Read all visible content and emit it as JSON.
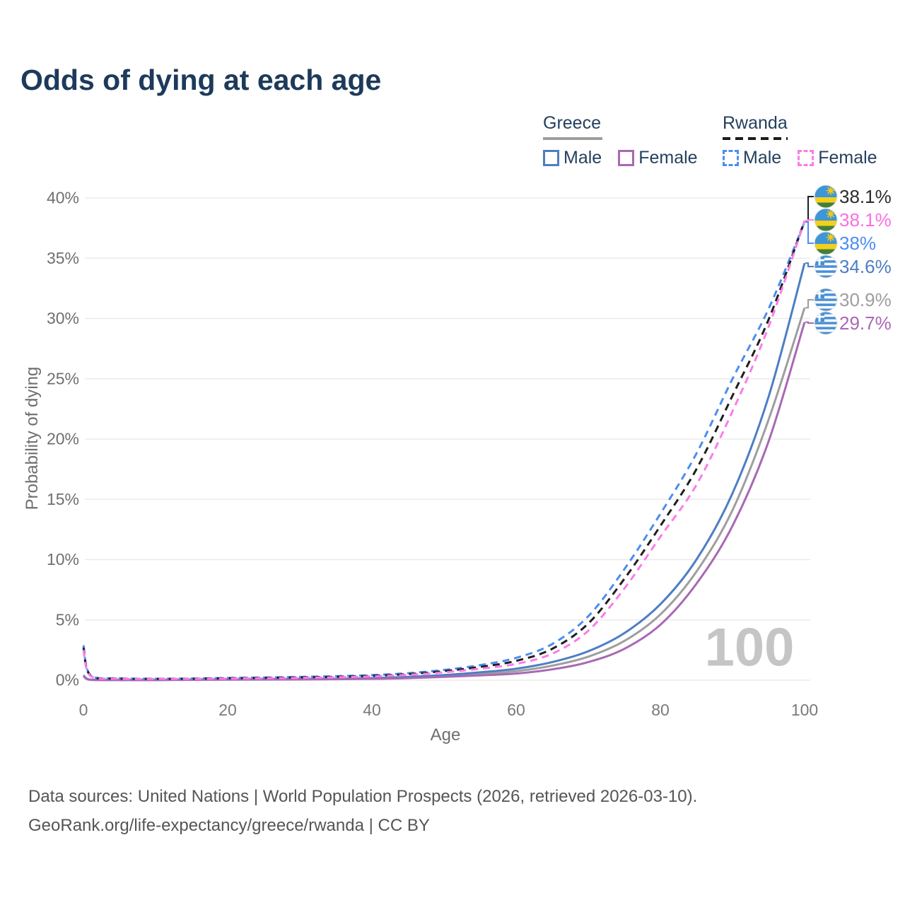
{
  "title": "Odds of dying at each age",
  "legend": {
    "groups": [
      {
        "country": "Greece",
        "line_style": "solid",
        "underline_color": "#9e9e9e",
        "items": [
          {
            "label": "Male",
            "color": "#4d7ec3"
          },
          {
            "label": "Female",
            "color": "#a968b4"
          }
        ]
      },
      {
        "country": "Rwanda",
        "line_style": "dashed",
        "underline_color": "#1c1c1c",
        "items": [
          {
            "label": "Male",
            "color": "#4b8df2"
          },
          {
            "label": "Female",
            "color": "#fa7ce8"
          }
        ]
      }
    ]
  },
  "colors": {
    "title_text": "#1d3a5b",
    "legend_text": "#25405f",
    "axis_text": "#6f6f6f",
    "gridline": "#ebebeb",
    "watermark": "#c5c5c5",
    "footer_text": "#555555"
  },
  "chart_data": {
    "type": "line",
    "title": "Odds of dying at each age",
    "xlabel": "Age",
    "ylabel": "Probability of dying",
    "xlim": [
      0,
      100
    ],
    "ylim": [
      0,
      40
    ],
    "xticks": [
      0,
      20,
      40,
      60,
      80,
      100
    ],
    "yticks": [
      0,
      5,
      10,
      15,
      20,
      25,
      30,
      35,
      40
    ],
    "ytick_suffix": "%",
    "grid": "horizontal",
    "legend_position": "top-right",
    "watermark": "100",
    "x": [
      0,
      1,
      5,
      10,
      15,
      20,
      25,
      30,
      35,
      40,
      45,
      50,
      55,
      60,
      65,
      70,
      75,
      80,
      85,
      90,
      95,
      100
    ],
    "series": [
      {
        "id": "greece-all",
        "name": "Greece All",
        "country": "Greece",
        "sex": "all",
        "color": "#9e9e9e",
        "dash": false,
        "flag": "greece",
        "end_label": "30.9%",
        "label_color": "#9e9e9e",
        "values": [
          0.37,
          0.035,
          0.018,
          0.018,
          0.04,
          0.055,
          0.065,
          0.08,
          0.1,
          0.14,
          0.22,
          0.35,
          0.52,
          0.75,
          1.2,
          1.95,
          3.25,
          5.45,
          9.0,
          14.1,
          21.6,
          30.9
        ]
      },
      {
        "id": "greece-male",
        "name": "Greece Male",
        "country": "Greece",
        "sex": "male",
        "color": "#4d7ec3",
        "dash": false,
        "flag": "greece",
        "end_label": "34.6%",
        "label_color": "#4d7ec3",
        "values": [
          0.4,
          0.04,
          0.02,
          0.02,
          0.05,
          0.07,
          0.08,
          0.1,
          0.12,
          0.17,
          0.27,
          0.42,
          0.65,
          0.95,
          1.5,
          2.4,
          3.9,
          6.3,
          10.0,
          15.5,
          23.5,
          34.6
        ]
      },
      {
        "id": "greece-female",
        "name": "Greece Female",
        "country": "Greece",
        "sex": "female",
        "color": "#a968b4",
        "dash": false,
        "flag": "greece",
        "end_label": "29.7%",
        "label_color": "#a968b4",
        "values": [
          0.33,
          0.03,
          0.015,
          0.015,
          0.03,
          0.04,
          0.05,
          0.06,
          0.08,
          0.11,
          0.17,
          0.27,
          0.4,
          0.55,
          0.9,
          1.5,
          2.6,
          4.6,
          8.0,
          12.8,
          19.8,
          29.7
        ]
      },
      {
        "id": "rwanda-male",
        "name": "Rwanda Male",
        "country": "Rwanda",
        "sex": "male",
        "color": "#4b8df2",
        "dash": true,
        "flag": "rwanda",
        "end_label": "38%",
        "label_color": "#4b8df2",
        "values": [
          2.9,
          0.4,
          0.15,
          0.12,
          0.14,
          0.18,
          0.22,
          0.27,
          0.33,
          0.42,
          0.58,
          0.85,
          1.25,
          1.85,
          3.0,
          5.3,
          9.2,
          13.8,
          18.8,
          25.0,
          30.8,
          38.0
        ]
      },
      {
        "id": "rwanda-all",
        "name": "Rwanda All",
        "country": "Rwanda",
        "sex": "all",
        "color": "#1f1f1f",
        "dash": true,
        "flag": "rwanda",
        "end_label": "38.1%",
        "label_color": "#2b2b2b",
        "values": [
          2.7,
          0.36,
          0.13,
          0.11,
          0.12,
          0.16,
          0.19,
          0.23,
          0.28,
          0.36,
          0.5,
          0.75,
          1.1,
          1.6,
          2.6,
          4.7,
          8.4,
          12.8,
          17.5,
          23.6,
          29.9,
          38.1
        ]
      },
      {
        "id": "rwanda-female",
        "name": "Rwanda Female",
        "country": "Rwanda",
        "sex": "female",
        "color": "#fa7ce8",
        "dash": true,
        "flag": "rwanda",
        "end_label": "38.1%",
        "label_color": "#fb6ee0",
        "values": [
          2.5,
          0.33,
          0.12,
          0.1,
          0.11,
          0.13,
          0.16,
          0.19,
          0.24,
          0.31,
          0.44,
          0.65,
          0.95,
          1.35,
          2.2,
          4.1,
          7.6,
          11.9,
          16.2,
          22.3,
          29.3,
          38.1
        ]
      }
    ]
  },
  "footer": {
    "line1": "Data sources: United Nations | World Population Prospects (2026, retrieved 2026-03-10).",
    "line2": "GeoRank.org/life-expectancy/greece/rwanda | CC BY"
  }
}
